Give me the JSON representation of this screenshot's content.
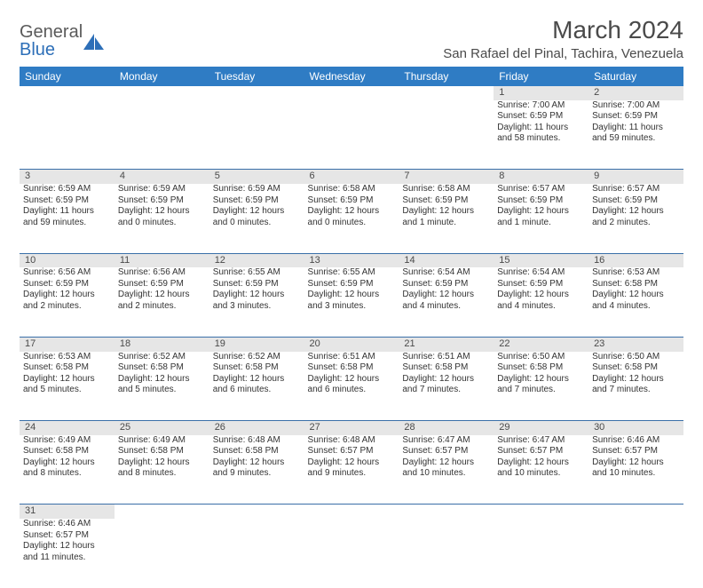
{
  "brand": {
    "name_a": "General",
    "name_b": "Blue"
  },
  "title": "March 2024",
  "location": "San Rafael del Pinal, Tachira, Venezuela",
  "colors": {
    "header_bg": "#2f7cc4",
    "header_fg": "#ffffff",
    "daynum_bg": "#e6e6e6",
    "cell_border": "#3a6fa8",
    "text": "#333333",
    "title_text": "#4a4a4a",
    "logo_gray": "#5a5a5a",
    "logo_blue": "#2d6fb8"
  },
  "day_headers": [
    "Sunday",
    "Monday",
    "Tuesday",
    "Wednesday",
    "Thursday",
    "Friday",
    "Saturday"
  ],
  "weeks": [
    [
      null,
      null,
      null,
      null,
      null,
      {
        "n": "1",
        "sr": "7:00 AM",
        "ss": "6:59 PM",
        "dl": "11 hours and 58 minutes."
      },
      {
        "n": "2",
        "sr": "7:00 AM",
        "ss": "6:59 PM",
        "dl": "11 hours and 59 minutes."
      }
    ],
    [
      {
        "n": "3",
        "sr": "6:59 AM",
        "ss": "6:59 PM",
        "dl": "11 hours and 59 minutes."
      },
      {
        "n": "4",
        "sr": "6:59 AM",
        "ss": "6:59 PM",
        "dl": "12 hours and 0 minutes."
      },
      {
        "n": "5",
        "sr": "6:59 AM",
        "ss": "6:59 PM",
        "dl": "12 hours and 0 minutes."
      },
      {
        "n": "6",
        "sr": "6:58 AM",
        "ss": "6:59 PM",
        "dl": "12 hours and 0 minutes."
      },
      {
        "n": "7",
        "sr": "6:58 AM",
        "ss": "6:59 PM",
        "dl": "12 hours and 1 minute."
      },
      {
        "n": "8",
        "sr": "6:57 AM",
        "ss": "6:59 PM",
        "dl": "12 hours and 1 minute."
      },
      {
        "n": "9",
        "sr": "6:57 AM",
        "ss": "6:59 PM",
        "dl": "12 hours and 2 minutes."
      }
    ],
    [
      {
        "n": "10",
        "sr": "6:56 AM",
        "ss": "6:59 PM",
        "dl": "12 hours and 2 minutes."
      },
      {
        "n": "11",
        "sr": "6:56 AM",
        "ss": "6:59 PM",
        "dl": "12 hours and 2 minutes."
      },
      {
        "n": "12",
        "sr": "6:55 AM",
        "ss": "6:59 PM",
        "dl": "12 hours and 3 minutes."
      },
      {
        "n": "13",
        "sr": "6:55 AM",
        "ss": "6:59 PM",
        "dl": "12 hours and 3 minutes."
      },
      {
        "n": "14",
        "sr": "6:54 AM",
        "ss": "6:59 PM",
        "dl": "12 hours and 4 minutes."
      },
      {
        "n": "15",
        "sr": "6:54 AM",
        "ss": "6:59 PM",
        "dl": "12 hours and 4 minutes."
      },
      {
        "n": "16",
        "sr": "6:53 AM",
        "ss": "6:58 PM",
        "dl": "12 hours and 4 minutes."
      }
    ],
    [
      {
        "n": "17",
        "sr": "6:53 AM",
        "ss": "6:58 PM",
        "dl": "12 hours and 5 minutes."
      },
      {
        "n": "18",
        "sr": "6:52 AM",
        "ss": "6:58 PM",
        "dl": "12 hours and 5 minutes."
      },
      {
        "n": "19",
        "sr": "6:52 AM",
        "ss": "6:58 PM",
        "dl": "12 hours and 6 minutes."
      },
      {
        "n": "20",
        "sr": "6:51 AM",
        "ss": "6:58 PM",
        "dl": "12 hours and 6 minutes."
      },
      {
        "n": "21",
        "sr": "6:51 AM",
        "ss": "6:58 PM",
        "dl": "12 hours and 7 minutes."
      },
      {
        "n": "22",
        "sr": "6:50 AM",
        "ss": "6:58 PM",
        "dl": "12 hours and 7 minutes."
      },
      {
        "n": "23",
        "sr": "6:50 AM",
        "ss": "6:58 PM",
        "dl": "12 hours and 7 minutes."
      }
    ],
    [
      {
        "n": "24",
        "sr": "6:49 AM",
        "ss": "6:58 PM",
        "dl": "12 hours and 8 minutes."
      },
      {
        "n": "25",
        "sr": "6:49 AM",
        "ss": "6:58 PM",
        "dl": "12 hours and 8 minutes."
      },
      {
        "n": "26",
        "sr": "6:48 AM",
        "ss": "6:58 PM",
        "dl": "12 hours and 9 minutes."
      },
      {
        "n": "27",
        "sr": "6:48 AM",
        "ss": "6:57 PM",
        "dl": "12 hours and 9 minutes."
      },
      {
        "n": "28",
        "sr": "6:47 AM",
        "ss": "6:57 PM",
        "dl": "12 hours and 10 minutes."
      },
      {
        "n": "29",
        "sr": "6:47 AM",
        "ss": "6:57 PM",
        "dl": "12 hours and 10 minutes."
      },
      {
        "n": "30",
        "sr": "6:46 AM",
        "ss": "6:57 PM",
        "dl": "12 hours and 10 minutes."
      }
    ],
    [
      {
        "n": "31",
        "sr": "6:46 AM",
        "ss": "6:57 PM",
        "dl": "12 hours and 11 minutes."
      },
      null,
      null,
      null,
      null,
      null,
      null
    ]
  ],
  "labels": {
    "sunrise": "Sunrise:",
    "sunset": "Sunset:",
    "daylight": "Daylight:"
  }
}
